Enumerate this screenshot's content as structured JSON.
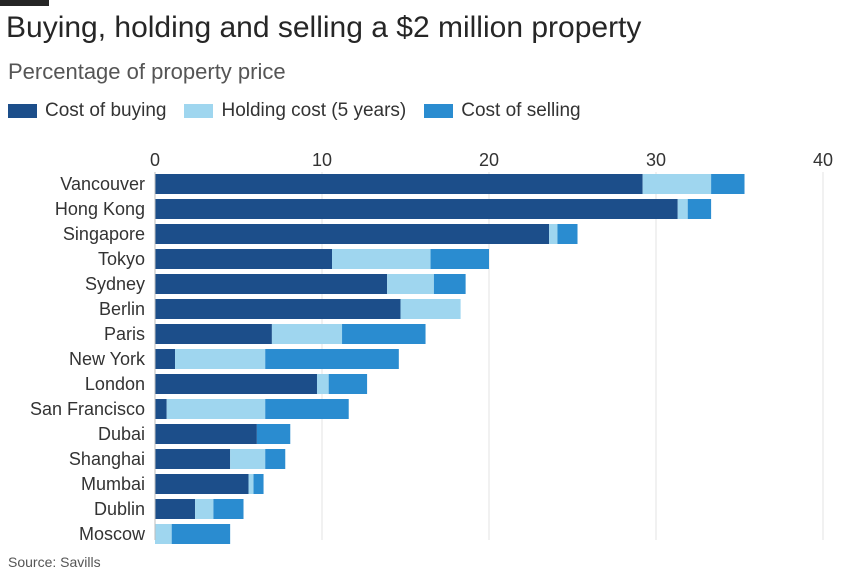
{
  "header": {
    "title": "Buying, holding and selling a $2 million property",
    "subtitle": "Percentage of property price"
  },
  "legend": [
    {
      "label": "Cost of buying",
      "color": "#1c4e8a"
    },
    {
      "label": "Holding cost (5 years)",
      "color": "#9fd6ef"
    },
    {
      "label": "Cost of selling",
      "color": "#2a8cd0"
    }
  ],
  "footer": {
    "source": "Source: Savills"
  },
  "chart_data": {
    "type": "bar",
    "orientation": "horizontal",
    "stacked": true,
    "title": "Buying, holding and selling a $2 million property",
    "subtitle": "Percentage of property price",
    "xlabel": "",
    "ylabel": "",
    "xlim": [
      0,
      40
    ],
    "x_ticks": [
      0,
      10,
      20,
      30,
      40
    ],
    "x_axis_position": "top",
    "grid": true,
    "legend_position": "top-left",
    "categories": [
      "Vancouver",
      "Hong Kong",
      "Singapore",
      "Tokyo",
      "Sydney",
      "Berlin",
      "Paris",
      "New York",
      "London",
      "San Francisco",
      "Dubai",
      "Shanghai",
      "Mumbai",
      "Dublin",
      "Moscow"
    ],
    "series": [
      {
        "name": "Cost of buying",
        "color": "#1c4e8a",
        "values": [
          29.2,
          31.3,
          23.6,
          10.6,
          13.9,
          14.7,
          7.0,
          1.2,
          9.7,
          0.7,
          6.1,
          4.5,
          5.6,
          2.4,
          0.0
        ]
      },
      {
        "name": "Holding cost (5 years)",
        "color": "#9fd6ef",
        "values": [
          4.1,
          0.6,
          0.5,
          5.9,
          2.8,
          3.6,
          4.2,
          5.4,
          0.7,
          5.9,
          0.0,
          2.1,
          0.3,
          1.1,
          1.0
        ]
      },
      {
        "name": "Cost of selling",
        "color": "#2a8cd0",
        "values": [
          2.0,
          1.4,
          1.2,
          3.5,
          1.9,
          0.0,
          5.0,
          8.0,
          2.3,
          5.0,
          2.0,
          1.2,
          0.6,
          1.8,
          3.5
        ]
      }
    ]
  }
}
